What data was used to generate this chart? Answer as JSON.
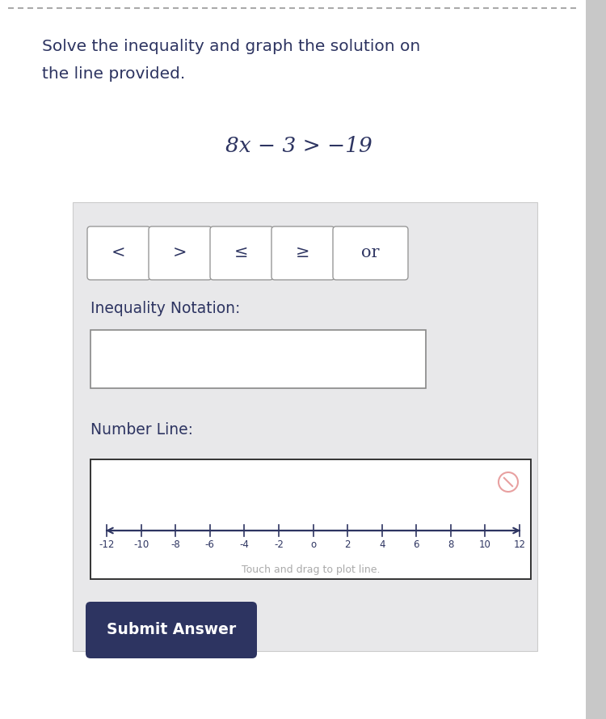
{
  "white": "#ffffff",
  "page_bg": "#ffffff",
  "dark_text": "#2d3461",
  "gray_text": "#aaaaaa",
  "panel_bg": "#e8e8ea",
  "panel_border": "#cccccc",
  "button_bg": "#ffffff",
  "button_border": "#999999",
  "input_box_bg": "#ffffff",
  "input_box_border": "#888888",
  "number_line_box_bg": "#ffffff",
  "number_line_box_border": "#333333",
  "dashed_color": "#aaaaaa",
  "reset_icon_color": "#e8a0a0",
  "sidebar_color": "#c8c8c8",
  "submit_bg": "#2d3461",
  "submit_text_color": "#ffffff",
  "title_line1": "Solve the inequality and graph the solution on",
  "title_line2": "the line provided.",
  "equation": "8x − 3 > −19",
  "buttons": [
    "<",
    ">",
    "≤",
    "≥",
    "or"
  ],
  "inequality_label": "Inequality Notation:",
  "number_line_label": "Number Line:",
  "number_line_ticks": [
    -12,
    -10,
    -8,
    -6,
    -4,
    -2,
    0,
    2,
    4,
    6,
    8,
    10,
    12
  ],
  "drag_text": "Touch and drag to plot line.",
  "submit_text": "Submit Answer",
  "fig_width": 7.5,
  "fig_height": 8.89,
  "dpi": 100
}
